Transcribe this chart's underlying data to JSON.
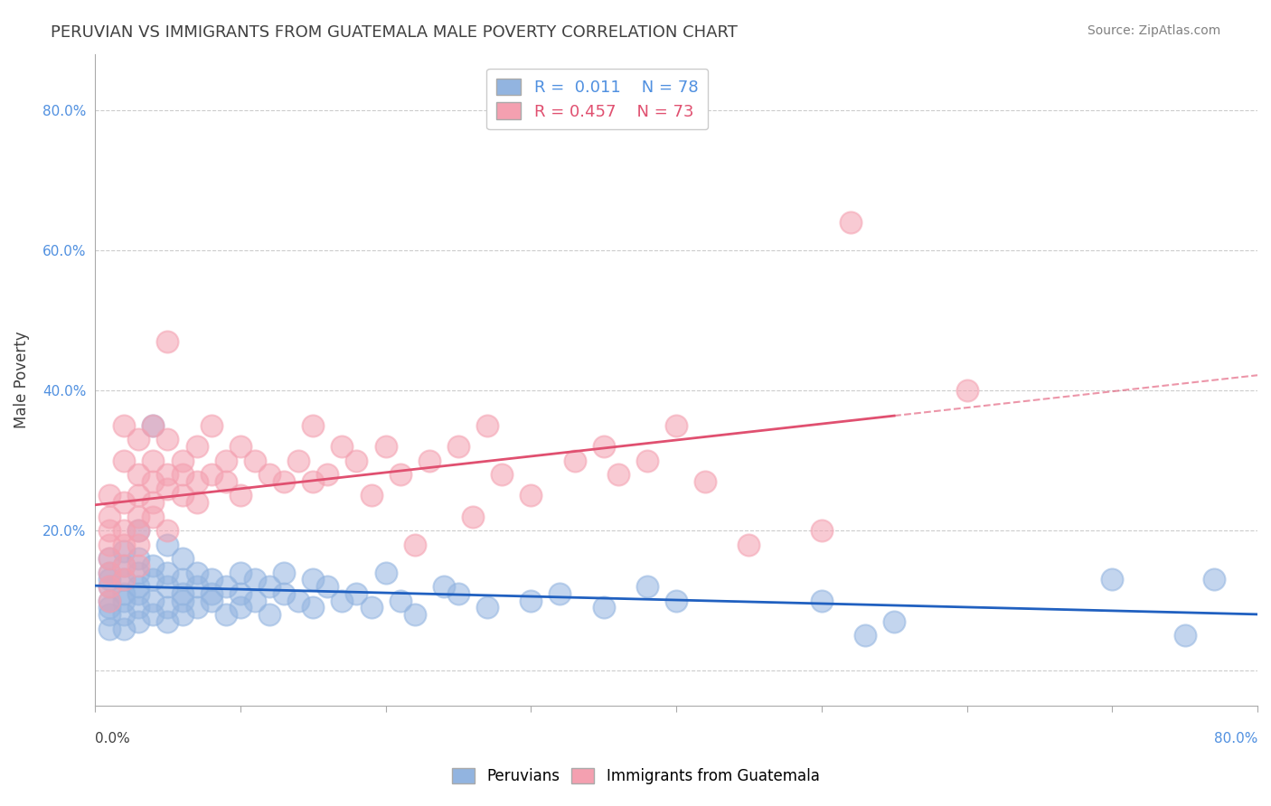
{
  "title": "PERUVIAN VS IMMIGRANTS FROM GUATEMALA MALE POVERTY CORRELATION CHART",
  "source": "Source: ZipAtlas.com",
  "ylabel": "Male Poverty",
  "xlim": [
    0.0,
    0.8
  ],
  "ylim": [
    -0.05,
    0.88
  ],
  "blue_R": 0.011,
  "blue_N": 78,
  "pink_R": 0.457,
  "pink_N": 73,
  "blue_color": "#92b4e0",
  "pink_color": "#f4a0b0",
  "blue_line_color": "#2060c0",
  "pink_line_color": "#e05070",
  "blue_scatter": [
    [
      0.01,
      0.12
    ],
    [
      0.01,
      0.1
    ],
    [
      0.01,
      0.08
    ],
    [
      0.01,
      0.14
    ],
    [
      0.01,
      0.06
    ],
    [
      0.01,
      0.16
    ],
    [
      0.01,
      0.13
    ],
    [
      0.01,
      0.09
    ],
    [
      0.02,
      0.11
    ],
    [
      0.02,
      0.15
    ],
    [
      0.02,
      0.08
    ],
    [
      0.02,
      0.13
    ],
    [
      0.02,
      0.17
    ],
    [
      0.02,
      0.1
    ],
    [
      0.02,
      0.06
    ],
    [
      0.03,
      0.12
    ],
    [
      0.03,
      0.09
    ],
    [
      0.03,
      0.14
    ],
    [
      0.03,
      0.16
    ],
    [
      0.03,
      0.07
    ],
    [
      0.03,
      0.2
    ],
    [
      0.03,
      0.11
    ],
    [
      0.04,
      0.13
    ],
    [
      0.04,
      0.1
    ],
    [
      0.04,
      0.08
    ],
    [
      0.04,
      0.15
    ],
    [
      0.04,
      0.35
    ],
    [
      0.05,
      0.12
    ],
    [
      0.05,
      0.09
    ],
    [
      0.05,
      0.14
    ],
    [
      0.05,
      0.18
    ],
    [
      0.05,
      0.07
    ],
    [
      0.06,
      0.13
    ],
    [
      0.06,
      0.11
    ],
    [
      0.06,
      0.1
    ],
    [
      0.06,
      0.16
    ],
    [
      0.06,
      0.08
    ],
    [
      0.07,
      0.12
    ],
    [
      0.07,
      0.09
    ],
    [
      0.07,
      0.14
    ],
    [
      0.08,
      0.11
    ],
    [
      0.08,
      0.13
    ],
    [
      0.08,
      0.1
    ],
    [
      0.09,
      0.12
    ],
    [
      0.09,
      0.08
    ],
    [
      0.1,
      0.14
    ],
    [
      0.1,
      0.11
    ],
    [
      0.1,
      0.09
    ],
    [
      0.11,
      0.13
    ],
    [
      0.11,
      0.1
    ],
    [
      0.12,
      0.12
    ],
    [
      0.12,
      0.08
    ],
    [
      0.13,
      0.11
    ],
    [
      0.13,
      0.14
    ],
    [
      0.14,
      0.1
    ],
    [
      0.15,
      0.09
    ],
    [
      0.15,
      0.13
    ],
    [
      0.16,
      0.12
    ],
    [
      0.17,
      0.1
    ],
    [
      0.18,
      0.11
    ],
    [
      0.19,
      0.09
    ],
    [
      0.2,
      0.14
    ],
    [
      0.21,
      0.1
    ],
    [
      0.22,
      0.08
    ],
    [
      0.24,
      0.12
    ],
    [
      0.25,
      0.11
    ],
    [
      0.27,
      0.09
    ],
    [
      0.3,
      0.1
    ],
    [
      0.32,
      0.11
    ],
    [
      0.35,
      0.09
    ],
    [
      0.38,
      0.12
    ],
    [
      0.4,
      0.1
    ],
    [
      0.5,
      0.1
    ],
    [
      0.53,
      0.05
    ],
    [
      0.55,
      0.07
    ],
    [
      0.7,
      0.13
    ],
    [
      0.75,
      0.05
    ],
    [
      0.77,
      0.13
    ]
  ],
  "pink_scatter": [
    [
      0.01,
      0.14
    ],
    [
      0.01,
      0.18
    ],
    [
      0.01,
      0.2
    ],
    [
      0.01,
      0.22
    ],
    [
      0.01,
      0.25
    ],
    [
      0.01,
      0.16
    ],
    [
      0.01,
      0.12
    ],
    [
      0.01,
      0.1
    ],
    [
      0.02,
      0.15
    ],
    [
      0.02,
      0.2
    ],
    [
      0.02,
      0.24
    ],
    [
      0.02,
      0.18
    ],
    [
      0.02,
      0.3
    ],
    [
      0.02,
      0.35
    ],
    [
      0.02,
      0.13
    ],
    [
      0.03,
      0.22
    ],
    [
      0.03,
      0.28
    ],
    [
      0.03,
      0.25
    ],
    [
      0.03,
      0.2
    ],
    [
      0.03,
      0.15
    ],
    [
      0.03,
      0.33
    ],
    [
      0.03,
      0.18
    ],
    [
      0.04,
      0.24
    ],
    [
      0.04,
      0.3
    ],
    [
      0.04,
      0.27
    ],
    [
      0.04,
      0.35
    ],
    [
      0.04,
      0.22
    ],
    [
      0.05,
      0.28
    ],
    [
      0.05,
      0.33
    ],
    [
      0.05,
      0.26
    ],
    [
      0.05,
      0.2
    ],
    [
      0.05,
      0.47
    ],
    [
      0.06,
      0.25
    ],
    [
      0.06,
      0.3
    ],
    [
      0.06,
      0.28
    ],
    [
      0.07,
      0.32
    ],
    [
      0.07,
      0.27
    ],
    [
      0.07,
      0.24
    ],
    [
      0.08,
      0.28
    ],
    [
      0.08,
      0.35
    ],
    [
      0.09,
      0.3
    ],
    [
      0.09,
      0.27
    ],
    [
      0.1,
      0.32
    ],
    [
      0.1,
      0.25
    ],
    [
      0.11,
      0.3
    ],
    [
      0.12,
      0.28
    ],
    [
      0.13,
      0.27
    ],
    [
      0.14,
      0.3
    ],
    [
      0.15,
      0.27
    ],
    [
      0.15,
      0.35
    ],
    [
      0.16,
      0.28
    ],
    [
      0.17,
      0.32
    ],
    [
      0.18,
      0.3
    ],
    [
      0.19,
      0.25
    ],
    [
      0.2,
      0.32
    ],
    [
      0.21,
      0.28
    ],
    [
      0.22,
      0.18
    ],
    [
      0.23,
      0.3
    ],
    [
      0.25,
      0.32
    ],
    [
      0.26,
      0.22
    ],
    [
      0.27,
      0.35
    ],
    [
      0.28,
      0.28
    ],
    [
      0.3,
      0.25
    ],
    [
      0.33,
      0.3
    ],
    [
      0.35,
      0.32
    ],
    [
      0.36,
      0.28
    ],
    [
      0.38,
      0.3
    ],
    [
      0.4,
      0.35
    ],
    [
      0.42,
      0.27
    ],
    [
      0.45,
      0.18
    ],
    [
      0.5,
      0.2
    ],
    [
      0.52,
      0.64
    ],
    [
      0.6,
      0.4
    ]
  ],
  "background_color": "#ffffff",
  "grid_color": "#cccccc",
  "title_color": "#404040",
  "source_color": "#808080",
  "yaxis_label_color": "#5090e0",
  "xaxis_label_color_left": "#404040",
  "xaxis_label_color_right": "#5090e0"
}
